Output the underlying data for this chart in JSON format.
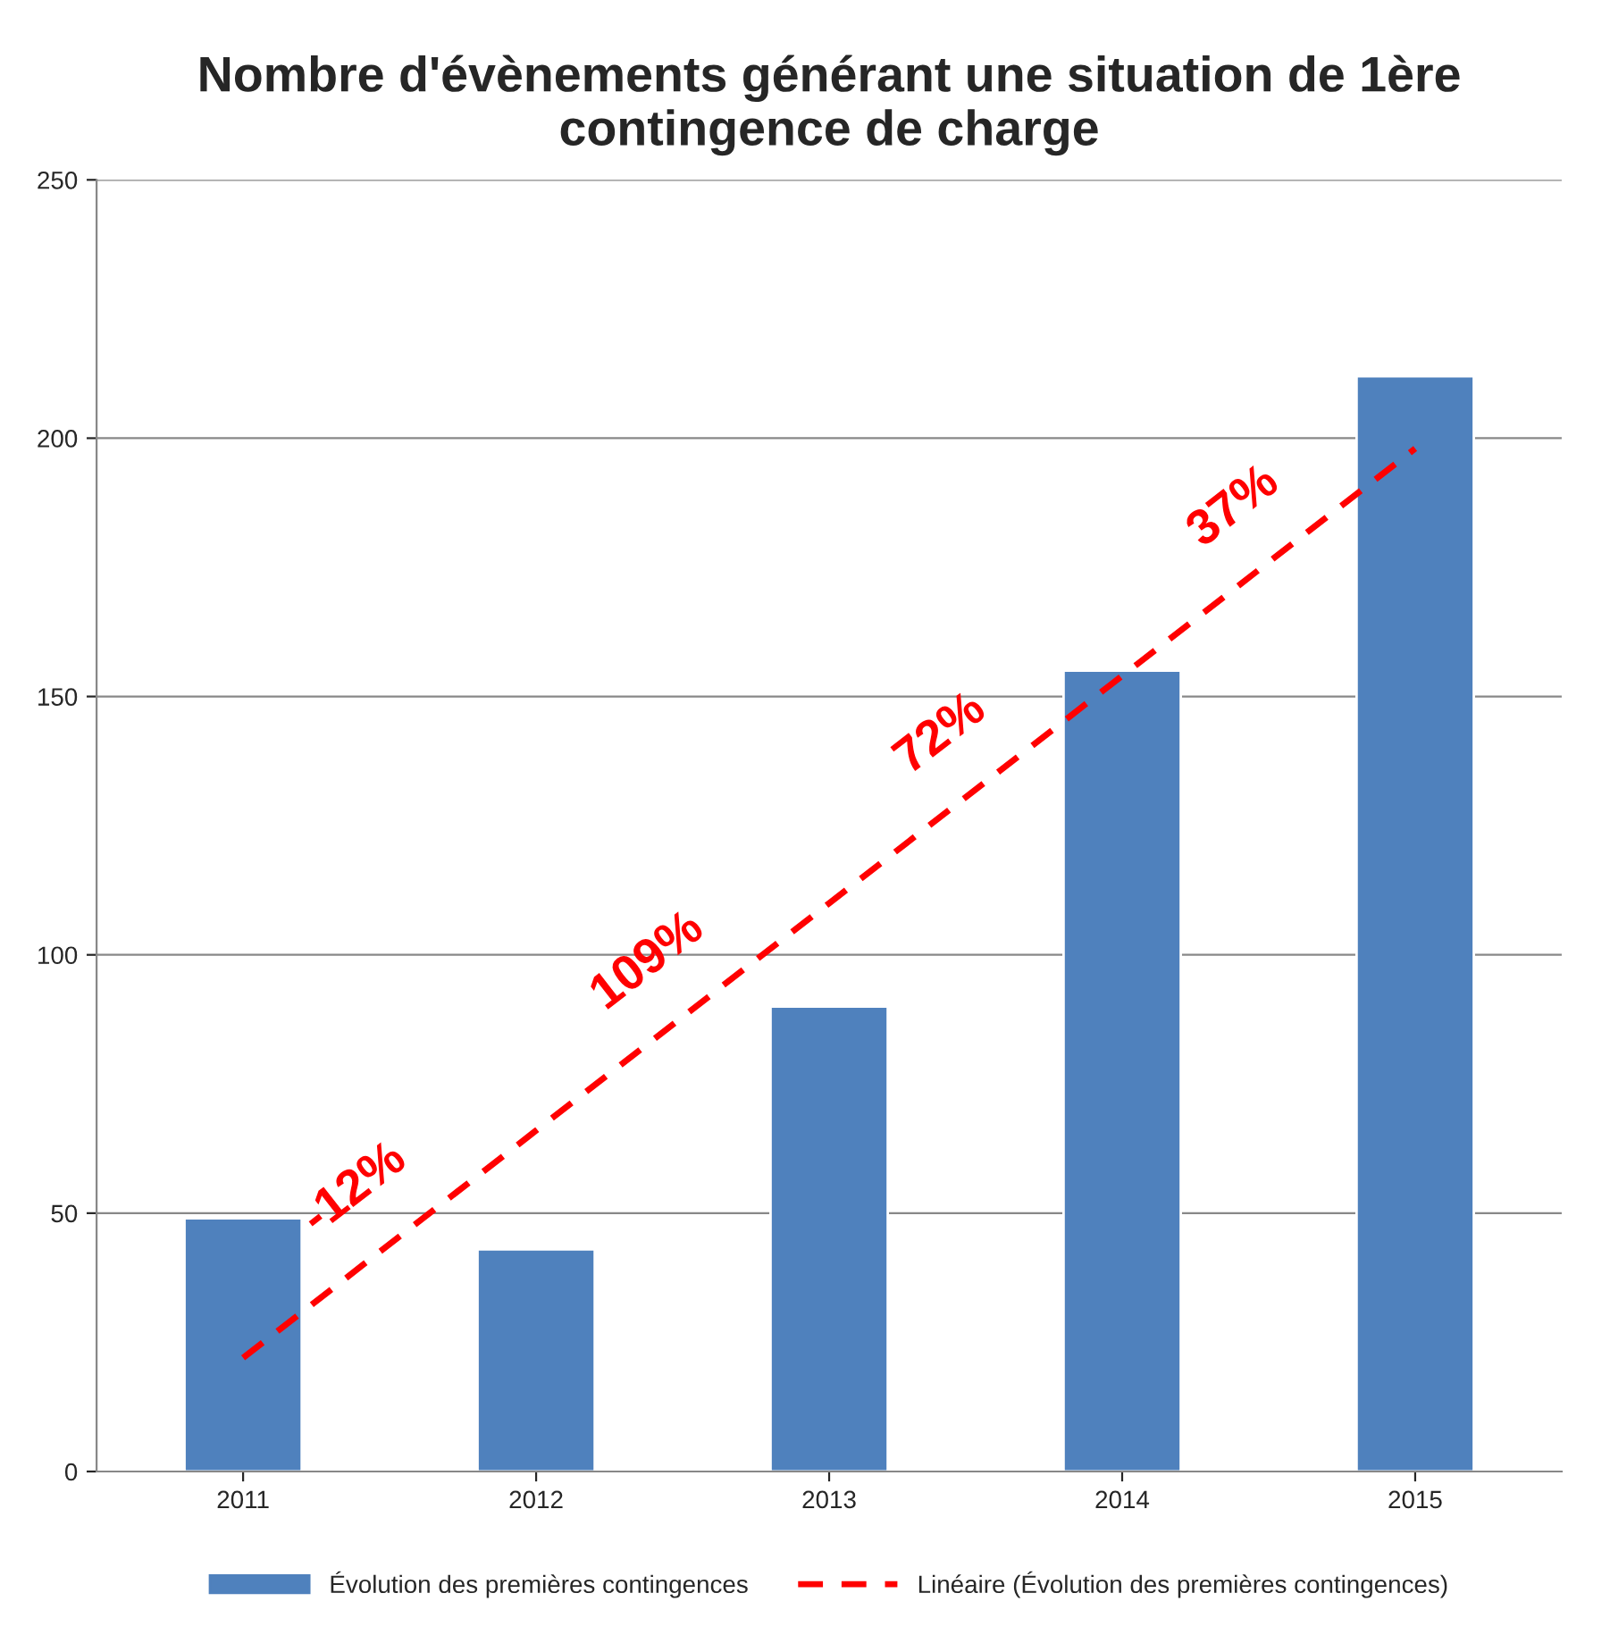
{
  "chart_data": {
    "type": "bar",
    "title": "Nombre d'évènements générant une situation de 1ère\ncontingence de charge",
    "categories": [
      "2011",
      "2012",
      "2013",
      "2014",
      "2015"
    ],
    "series": [
      {
        "name": "Évolution des premières contingences",
        "color": "#4f81bd",
        "values": [
          49,
          43,
          90,
          155,
          212
        ]
      },
      {
        "name": "Linéaire (Évolution des premières contingences)",
        "type": "line",
        "color": "#ff0000",
        "line_style": "dashed",
        "values": [
          22,
          66,
          110,
          154,
          198
        ]
      }
    ],
    "annotations": [
      "-12%",
      "109%",
      "72%",
      "37%"
    ],
    "ylim": [
      0,
      250
    ],
    "yticks": [
      0,
      50,
      100,
      150,
      200,
      250
    ],
    "grid": "y",
    "legend": "bottom"
  }
}
